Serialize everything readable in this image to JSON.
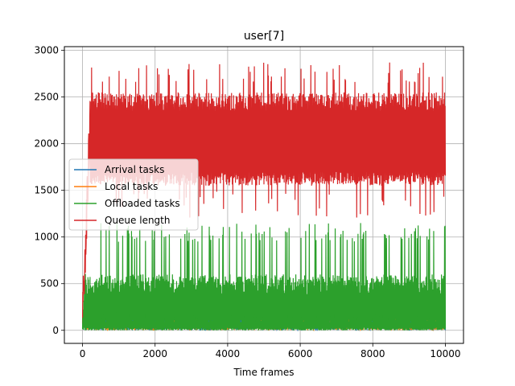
{
  "chart_data": {
    "type": "line",
    "title": "user[7]",
    "xlabel": "Time frames",
    "ylabel": "",
    "xlim": [
      -500,
      10500
    ],
    "ylim": [
      -140,
      3040
    ],
    "xticks": [
      0,
      2000,
      4000,
      6000,
      8000,
      10000
    ],
    "yticks": [
      0,
      500,
      1000,
      1500,
      2000,
      2500,
      3000
    ],
    "xtick_labels": [
      "0",
      "2000",
      "4000",
      "6000",
      "8000",
      "10000"
    ],
    "ytick_labels": [
      "0",
      "500",
      "1000",
      "1500",
      "2000",
      "2500",
      "3000"
    ],
    "grid": true,
    "legend_position": "center-left",
    "x_range": [
      0,
      10000
    ],
    "series": [
      {
        "name": "Arrival tasks",
        "color": "#1f77b4",
        "summary": {
          "min": 0,
          "max": 110,
          "typical": 50
        }
      },
      {
        "name": "Local tasks",
        "color": "#ff7f0e",
        "summary": {
          "min": 0,
          "max": 110,
          "typical": 50
        }
      },
      {
        "name": "Offloaded tasks",
        "color": "#2ca02c",
        "summary": {
          "min": 0,
          "max": 1150,
          "band_max": 600,
          "spike_max": 1150
        }
      },
      {
        "name": "Queue length",
        "color": "#d62728",
        "summary": {
          "start": 150,
          "ramp_end_x": 200,
          "min": 1200,
          "max": 2870,
          "typical_low": 1700,
          "typical_high": 2500,
          "mean": 2100
        }
      }
    ]
  }
}
